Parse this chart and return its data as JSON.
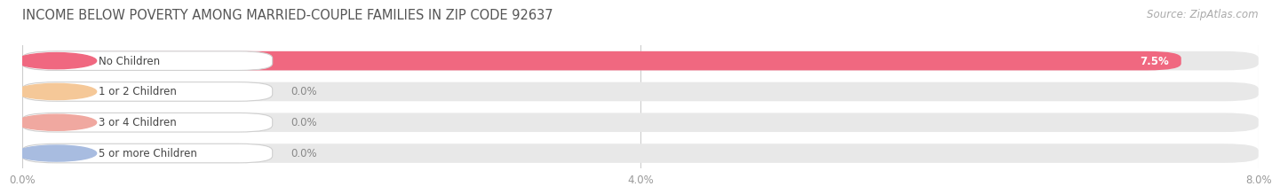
{
  "title": "INCOME BELOW POVERTY AMONG MARRIED-COUPLE FAMILIES IN ZIP CODE 92637",
  "source": "Source: ZipAtlas.com",
  "categories": [
    "No Children",
    "1 or 2 Children",
    "3 or 4 Children",
    "5 or more Children"
  ],
  "values": [
    7.5,
    0.0,
    0.0,
    0.0
  ],
  "bar_colors": [
    "#f06880",
    "#f5c898",
    "#f0a8a0",
    "#a8bce0"
  ],
  "xlim_max": 8.0,
  "xticks": [
    0.0,
    4.0,
    8.0
  ],
  "xtick_labels": [
    "0.0%",
    "4.0%",
    "8.0%"
  ],
  "background_color": "#ffffff",
  "bar_bg_color": "#e8e8e8",
  "title_fontsize": 10.5,
  "source_fontsize": 8.5,
  "label_fontsize": 8.5,
  "value_fontsize": 8.5
}
